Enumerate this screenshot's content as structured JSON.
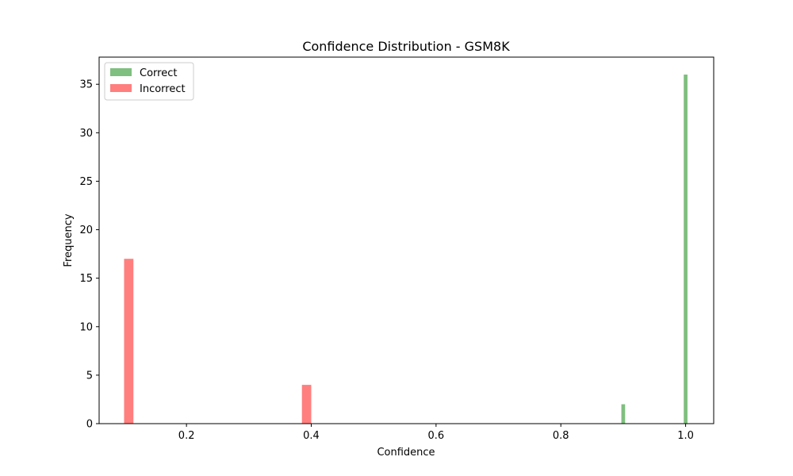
{
  "chart_data": {
    "type": "bar",
    "title": "Confidence Distribution - GSM8K",
    "xlabel": "Confidence",
    "ylabel": "Frequency",
    "xlim": [
      0.06,
      1.045
    ],
    "ylim": [
      0,
      37.8
    ],
    "xticks": [
      "0.2",
      "0.4",
      "0.6",
      "0.8",
      "1.0"
    ],
    "yticks": [
      "0",
      "5",
      "10",
      "15",
      "20",
      "25",
      "30",
      "35"
    ],
    "legend_position": "top-left",
    "grid": false,
    "series": [
      {
        "name": "Correct",
        "color": "#008000",
        "opacity": 0.5,
        "bins": [
          {
            "x0": 0.897,
            "x1": 0.903,
            "count": 2
          },
          {
            "x0": 0.997,
            "x1": 1.003,
            "count": 36
          }
        ]
      },
      {
        "name": "Incorrect",
        "color": "#ff0000",
        "opacity": 0.5,
        "bins": [
          {
            "x0": 0.1,
            "x1": 0.115,
            "count": 17
          },
          {
            "x0": 0.385,
            "x1": 0.4,
            "count": 4
          }
        ]
      }
    ]
  }
}
